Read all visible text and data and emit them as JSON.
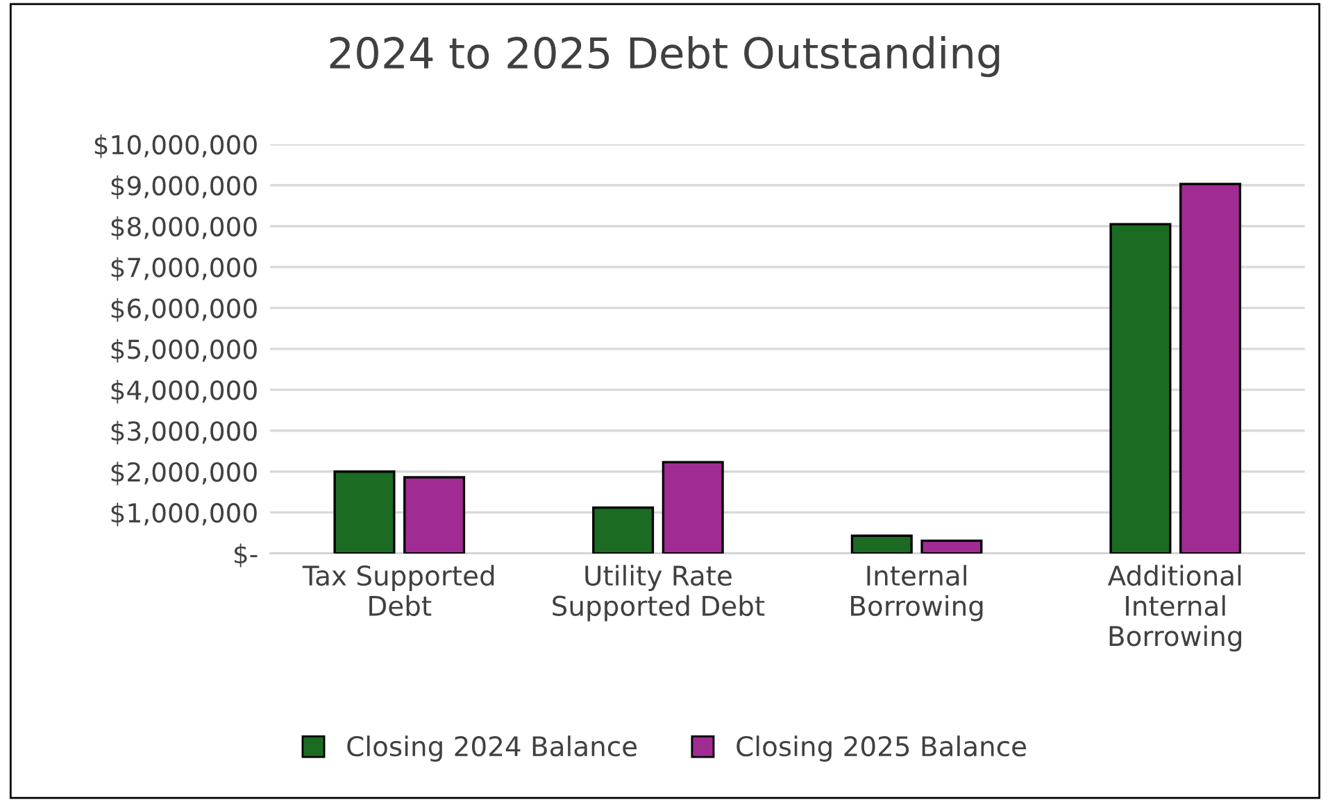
{
  "chart_data": {
    "type": "bar",
    "title": "2024 to 2025 Debt Outstanding",
    "categories": [
      "Tax Supported Debt",
      "Utility Rate Supported Debt",
      "Internal Borrowing",
      "Additional Internal Borrowing"
    ],
    "series": [
      {
        "name": "Closing 2024 Balance",
        "color": "#1b6b23",
        "values": [
          2000000,
          1120000,
          430000,
          8050000
        ]
      },
      {
        "name": "Closing 2025 Balance",
        "color": "#a02b93",
        "values": [
          1860000,
          2230000,
          310000,
          9030000
        ]
      }
    ],
    "ylim": [
      0,
      10000000
    ],
    "yticks": [
      {
        "value": 0,
        "label": "$-"
      },
      {
        "value": 1000000,
        "label": "$1,000,000"
      },
      {
        "value": 2000000,
        "label": "$2,000,000"
      },
      {
        "value": 3000000,
        "label": "$3,000,000"
      },
      {
        "value": 4000000,
        "label": "$4,000,000"
      },
      {
        "value": 5000000,
        "label": "$5,000,000"
      },
      {
        "value": 6000000,
        "label": "$6,000,000"
      },
      {
        "value": 7000000,
        "label": "$7,000,000"
      },
      {
        "value": 8000000,
        "label": "$8,000,000"
      },
      {
        "value": 9000000,
        "label": "$9,000,000"
      },
      {
        "value": 10000000,
        "label": "$10,000,000"
      }
    ],
    "grid": "y",
    "legend": "bottom"
  }
}
